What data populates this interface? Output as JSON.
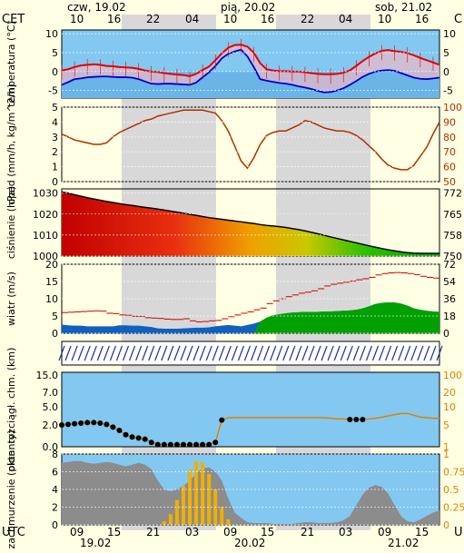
{
  "header": {
    "timezone_label": "CET",
    "day_labels": [
      "czw, 19.02",
      "pią, 20.02",
      "sob, 21.02"
    ],
    "hour_labels": [
      "10",
      "16",
      "22",
      "04",
      "10",
      "16",
      "22",
      "04",
      "10",
      "16"
    ]
  },
  "footer": {
    "timezone_label": "UTC",
    "hour_labels": [
      "09",
      "15",
      "21",
      "03",
      "09",
      "15",
      "21",
      "03",
      "09",
      "15"
    ],
    "date_labels": [
      "19.02",
      "20.02",
      "21.02"
    ]
  },
  "right_edge_labels": {
    "top": "C",
    "bottom": "U"
  },
  "colors": {
    "background": "#ffffe4",
    "plot_sky": "#82c8f0",
    "night_band": "#d8d8d8",
    "temperature": "#e00000",
    "dewpoint": "#0000cc",
    "pressure_line": "#000000",
    "pressure_axis_right": "#000000",
    "humidity_axis": "#b03000",
    "precip_bar": "#f0b000",
    "wind_gust": "#cc0000",
    "wind_speed_fill": "#00a000",
    "cloud_high": "#8c8c8c",
    "visibility": "#e08000",
    "arrows": "#203090"
  },
  "chart_data": [
    {
      "type": "line",
      "panel": "temperature",
      "ylabel": "temperatura (°C)",
      "ylim": [
        -7,
        11
      ],
      "yticks": [
        "10",
        "5",
        "0",
        "-5"
      ],
      "right_yticks": [
        "10",
        "5",
        "0",
        "-5"
      ],
      "x": [
        0,
        1,
        2,
        3,
        4,
        5,
        6,
        7,
        8,
        9,
        10,
        11,
        12,
        13,
        14,
        15,
        16,
        17,
        18,
        19,
        20,
        21,
        22,
        23,
        24,
        25,
        26,
        27,
        28,
        29,
        30,
        31,
        32,
        33,
        34,
        35,
        36,
        37,
        38,
        39,
        40,
        41,
        42,
        43,
        44,
        45,
        46,
        47,
        48,
        49,
        50,
        51,
        52,
        53,
        54,
        55,
        56,
        57,
        58,
        59
      ],
      "series": [
        {
          "values": [
            0.3,
            0.6,
            1.2,
            1.6,
            1.8,
            1.9,
            1.8,
            1.5,
            1.4,
            1.2,
            1.1,
            1.0,
            0.7,
            0.3,
            0.0,
            -0.1,
            -0.4,
            -0.6,
            -0.8,
            -0.9,
            -1.2,
            -0.6,
            0.4,
            1.3,
            3.0,
            4.8,
            6.3,
            7.0,
            7.1,
            6.6,
            5.0,
            2.2,
            0.6,
            0.3,
            0.1,
            0.1,
            0.0,
            0.0,
            -0.2,
            -0.4,
            -0.6,
            -0.7,
            -0.7,
            -0.6,
            -0.3,
            0.3,
            1.5,
            2.8,
            3.9,
            4.8,
            5.5,
            5.7,
            5.4,
            5.2,
            4.9,
            4.3,
            3.6,
            3.0,
            2.4,
            1.8
          ]
        },
        {
          "values": [
            -3.5,
            -2.8,
            -2.0,
            -1.8,
            -1.5,
            -1.4,
            -1.3,
            -1.3,
            -1.4,
            -1.5,
            -1.5,
            -1.6,
            -2.0,
            -2.6,
            -3.2,
            -3.3,
            -3.2,
            -3.2,
            -3.3,
            -3.4,
            -3.5,
            -2.9,
            -1.5,
            -0.2,
            1.5,
            3.5,
            4.7,
            5.3,
            5.8,
            4.0,
            1.2,
            -2.0,
            -2.4,
            -2.7,
            -3.0,
            -3.2,
            -3.5,
            -3.9,
            -4.2,
            -4.6,
            -5.1,
            -5.5,
            -5.4,
            -5.0,
            -4.4,
            -3.5,
            -2.5,
            -1.4,
            -0.6,
            0.0,
            0.3,
            0.4,
            0.2,
            -0.4,
            -1.0,
            -1.6,
            -1.9,
            -2.0,
            -1.8,
            -1.6
          ]
        }
      ]
    },
    {
      "type": "line",
      "panel": "precipitation_humidity",
      "ylabel": "opad (mm/h, kg/m^2/h)",
      "ylim": [
        0,
        5
      ],
      "yticks": [
        "5",
        "4",
        "3",
        "2",
        "1",
        "0"
      ],
      "right_ylim": [
        50,
        100
      ],
      "right_yticks": [
        "100",
        "90",
        "80",
        "70",
        "60",
        "50"
      ],
      "series": [
        {
          "values": [
            82,
            80,
            78,
            77,
            76,
            75,
            75,
            76,
            80,
            83,
            85,
            87,
            89,
            91,
            92,
            94,
            95,
            96,
            97,
            98,
            98,
            98,
            98,
            97,
            96,
            91,
            84,
            74,
            64,
            59,
            66,
            75,
            81,
            83,
            84,
            84,
            86,
            88,
            91,
            90,
            88,
            86,
            85,
            84,
            84,
            83,
            81,
            78,
            74,
            70,
            65,
            61,
            59,
            58,
            58,
            61,
            67,
            73,
            82,
            90
          ]
        }
      ]
    },
    {
      "type": "area",
      "panel": "pressure",
      "ylabel": "ciśnienie (hPa)",
      "ylim": [
        1000,
        1032
      ],
      "yticks": [
        "1030",
        "1020",
        "1010",
        "1000"
      ],
      "right_yticks": [
        "772",
        "765",
        "758",
        "750"
      ],
      "series": [
        {
          "values": [
            1030.5,
            1030.0,
            1029.2,
            1028.5,
            1027.8,
            1027.2,
            1026.6,
            1026.0,
            1025.5,
            1025.0,
            1024.5,
            1024.1,
            1023.6,
            1023.2,
            1022.8,
            1022.4,
            1021.9,
            1021.4,
            1020.9,
            1020.4,
            1019.9,
            1019.4,
            1018.8,
            1018.3,
            1017.9,
            1017.5,
            1017.1,
            1016.7,
            1016.3,
            1015.9,
            1015.5,
            1015.0,
            1014.6,
            1014.3,
            1014.0,
            1013.6,
            1013.1,
            1012.6,
            1012.0,
            1011.3,
            1010.6,
            1009.9,
            1009.1,
            1008.4,
            1007.7,
            1007.0,
            1006.3,
            1005.6,
            1004.9,
            1004.2,
            1003.6,
            1003.0,
            1002.5,
            1002.0,
            1001.6,
            1001.4,
            1001.3,
            1001.3,
            1001.3,
            1001.3
          ]
        }
      ]
    },
    {
      "type": "area",
      "panel": "wind",
      "ylabel": "wiatr (m/s)",
      "ylim": [
        0,
        20
      ],
      "yticks": [
        "20",
        "15",
        "10",
        "5",
        "0"
      ],
      "right_yticks": [
        "72",
        "54",
        "36",
        "18",
        "0"
      ],
      "series": [
        {
          "values": [
            2.5,
            2.3,
            2.2,
            2.2,
            2.0,
            2.0,
            2.0,
            2.0,
            2.0,
            2.3,
            2.3,
            2.2,
            2.2,
            2.0,
            1.8,
            1.4,
            1.3,
            1.3,
            1.3,
            1.4,
            1.5,
            1.6,
            1.6,
            1.7,
            2.0,
            2.2,
            2.4,
            2.2,
            2.0,
            2.4,
            2.8,
            3.4,
            4.5,
            5.2,
            5.5,
            5.8,
            6.0,
            6.1,
            6.2,
            6.2,
            6.2,
            6.3,
            6.3,
            6.4,
            6.5,
            6.6,
            6.8,
            7.2,
            7.8,
            8.5,
            8.8,
            8.9,
            8.9,
            8.6,
            8.0,
            7.2,
            6.8,
            6.5,
            6.3,
            6.2
          ]
        },
        {
          "values": [
            6.0,
            6.1,
            6.2,
            6.3,
            6.4,
            6.5,
            6.4,
            5.8,
            5.7,
            5.3,
            5.2,
            4.9,
            4.9,
            4.5,
            4.4,
            4.3,
            4.1,
            4.0,
            4.0,
            4.2,
            3.6,
            3.3,
            3.4,
            3.6,
            3.7,
            4.2,
            4.8,
            5.3,
            5.8,
            6.2,
            6.8,
            7.3,
            8.6,
            9.4,
            10.0,
            10.6,
            11.1,
            11.6,
            11.9,
            12.3,
            12.9,
            13.7,
            14.2,
            14.5,
            14.8,
            15.1,
            15.5,
            15.8,
            16.2,
            16.9,
            17.3,
            17.5,
            17.6,
            17.5,
            17.3,
            17.0,
            16.5,
            16.2,
            16.0,
            15.6
          ]
        }
      ]
    },
    {
      "type": "line",
      "panel": "visibility_cloudbase",
      "ylabel": "pion. rozciągł. chm. (km)",
      "ylim": [
        0,
        15
      ],
      "yticks": [
        "15.0",
        "7.0",
        "5.0",
        "2.0",
        "0.0"
      ],
      "right_yticks": [
        "100",
        "20",
        "10",
        "5",
        "1"
      ],
      "series": [
        {
          "values": [
            2.0,
            2.1,
            2.2,
            2.3,
            2.4,
            2.4,
            2.3,
            2.1,
            1.8,
            1.5,
            1.1,
            0.9,
            0.8,
            0.7,
            0.4,
            0.2,
            0.2,
            0.2,
            0.2,
            0.2,
            0.2,
            0.2,
            0.2,
            0.2,
            0.4,
            2.8,
            3.2,
            3.2,
            3.2,
            3.2,
            3.2,
            3.2,
            3.2,
            3.2,
            3.2,
            3.2,
            3.2,
            3.2,
            3.2,
            3.2,
            3.2,
            3.2,
            3.1,
            3.0,
            3.0,
            2.9,
            2.9,
            2.9,
            3.0,
            3.1,
            3.3,
            3.5,
            3.7,
            3.9,
            3.9,
            3.6,
            3.3,
            3.2,
            3.1,
            3.1
          ]
        }
      ]
    },
    {
      "type": "area",
      "panel": "cloud_cover",
      "ylabel": "zachmurzenie (oktanty)",
      "ylim": [
        0,
        8
      ],
      "yticks": [
        "8",
        "6",
        "4",
        "2",
        "0"
      ],
      "right_ylim": [
        0,
        1
      ],
      "right_yticks": [
        "1",
        "0.75",
        "0.5",
        "0.25",
        "0"
      ],
      "series": [
        {
          "values": [
            7.0,
            7.1,
            7.2,
            7.2,
            7.0,
            6.9,
            7.0,
            7.1,
            7.0,
            6.8,
            6.6,
            6.8,
            7.0,
            6.8,
            6.3,
            5.0,
            4.0,
            3.8,
            4.0,
            4.4,
            5.0,
            5.8,
            6.4,
            6.5,
            6.0,
            5.0,
            3.0,
            1.4,
            0.8,
            0.3,
            0.2,
            0.2,
            0.2,
            0.1,
            0.1,
            0.1,
            0.1,
            0.2,
            0.3,
            0.3,
            0.2,
            0.2,
            0.2,
            0.3,
            0.5,
            1.0,
            2.2,
            3.4,
            4.2,
            4.5,
            4.3,
            3.5,
            2.2,
            1.0,
            0.4,
            0.3,
            0.6,
            1.0,
            1.4,
            1.6
          ]
        },
        {
          "values": [
            0,
            0,
            0,
            0,
            0,
            0,
            0,
            0,
            0,
            0,
            0,
            0,
            0,
            0,
            0,
            0,
            0.05,
            0.15,
            0.35,
            0.55,
            0.78,
            0.9,
            0.88,
            0.72,
            0.5,
            0.25,
            0.08,
            0,
            0,
            0,
            0,
            0,
            0,
            0,
            0,
            0,
            0,
            0,
            0,
            0,
            0,
            0,
            0,
            0,
            0,
            0,
            0,
            0,
            0,
            0,
            0,
            0,
            0,
            0,
            0,
            0,
            0,
            0,
            0,
            0
          ]
        }
      ]
    }
  ]
}
